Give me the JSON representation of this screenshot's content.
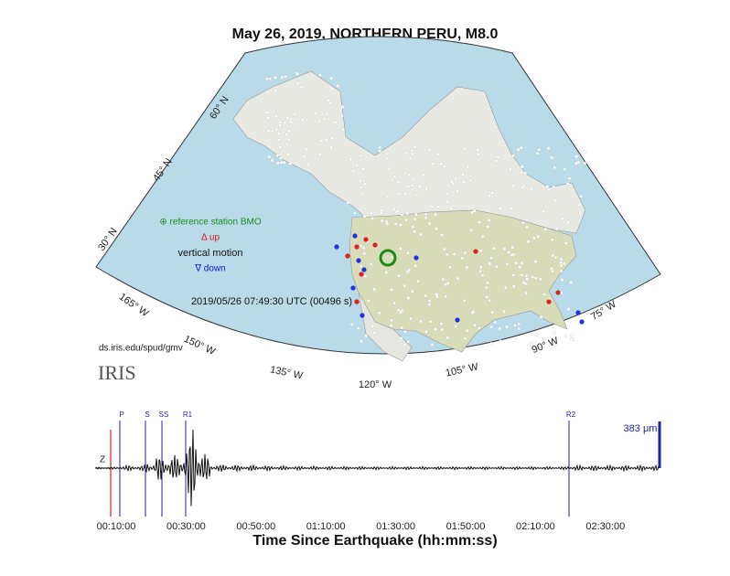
{
  "title": "May 26, 2019, NORTHERN PERU, M8.0",
  "map": {
    "latitude_labels": [
      "60° N",
      "45° N",
      "30° N"
    ],
    "longitude_labels": [
      "165° W",
      "150° W",
      "135° W",
      "120° W",
      "105° W",
      "90° W",
      "75° W"
    ],
    "legend": {
      "reference": "⊕ reference station BMO",
      "up": "Δ up",
      "motion": "vertical motion",
      "down": "∇ down"
    },
    "timestamp": "2019/05/26 07:49:30 UTC (00496 s)"
  },
  "credit": {
    "url": "ds.iris.edu/spud/gmv",
    "logo": "IRIS"
  },
  "seismogram": {
    "component": "Z",
    "scale": "383 μm",
    "phases": [
      "P",
      "S",
      "SS",
      "R1",
      "R2"
    ],
    "xticks": [
      "00:10:00",
      "00:30:00",
      "00:50:00",
      "01:10:00",
      "01:30:00",
      "01:50:00",
      "02:10:00",
      "02:30:00"
    ],
    "xlabel": "Time Since Earthquake (hh:mm:ss)"
  }
}
